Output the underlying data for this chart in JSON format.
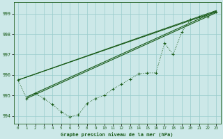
{
  "title": "Graphe pression niveau de la mer (hPa)",
  "bg_color": "#cce8e8",
  "grid_color": "#99cccc",
  "line_color": "#1a5c1a",
  "xlim": [
    -0.5,
    23.5
  ],
  "ylim": [
    993.6,
    999.55
  ],
  "yticks": [
    994,
    995,
    996,
    997,
    998,
    999
  ],
  "xticks": [
    0,
    1,
    2,
    3,
    4,
    5,
    6,
    7,
    8,
    9,
    10,
    11,
    12,
    13,
    14,
    15,
    16,
    17,
    18,
    19,
    20,
    21,
    22,
    23
  ],
  "xlabel": "Graphe pression niveau de la mer (hPa)",
  "hours": [
    0,
    1,
    2,
    3,
    4,
    5,
    6,
    7,
    8,
    9,
    10,
    11,
    12,
    13,
    14,
    15,
    16,
    17,
    18,
    19,
    20,
    21,
    22,
    23
  ],
  "line_dotted": [
    995.75,
    994.85,
    995.1,
    994.85,
    994.55,
    994.2,
    993.95,
    994.05,
    994.6,
    994.85,
    995.0,
    995.3,
    995.55,
    995.8,
    996.05,
    996.1,
    996.1,
    997.55,
    997.0,
    998.1,
    998.7,
    998.85,
    998.85,
    999.1
  ],
  "trend1_x": [
    1,
    23
  ],
  "trend1_y": [
    994.85,
    999.05
  ],
  "trend2_x": [
    1,
    23
  ],
  "trend2_y": [
    994.92,
    999.12
  ],
  "trend3_x": [
    0,
    23
  ],
  "trend3_y": [
    995.75,
    999.1
  ],
  "trend4_x": [
    0,
    23
  ],
  "trend4_y": [
    995.75,
    999.15
  ]
}
